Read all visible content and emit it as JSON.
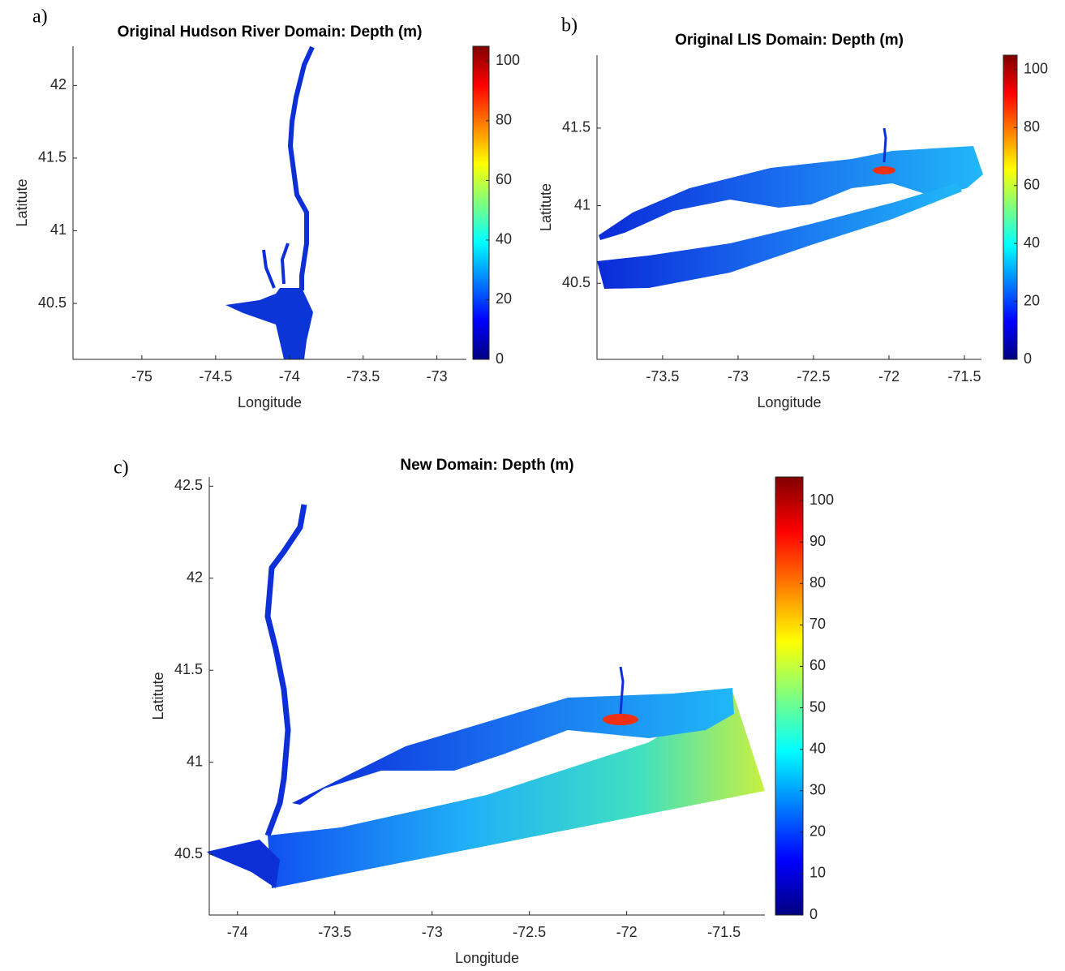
{
  "chart_data": [
    {
      "type": "map",
      "panel_label": "a)",
      "title": "Original Hudson River Domain: Depth (m)",
      "xlabel": "Longitude",
      "ylabel": "Latitute",
      "xlim": [
        -75.467,
        -72.8
      ],
      "xticks": [
        -75,
        -74.5,
        -74,
        -73.5,
        -73
      ],
      "ylim": [
        40.115,
        42.27
      ],
      "yticks": [
        40.5,
        41,
        41.5,
        42
      ],
      "colorbar": {
        "colormap": "jet",
        "clim": [
          0,
          105
        ],
        "ticks": [
          0,
          20,
          40,
          60,
          80,
          100
        ]
      }
    },
    {
      "type": "map",
      "panel_label": "b)",
      "title": "Original LIS Domain: Depth (m)",
      "xlabel": "Longitude",
      "ylabel": "Latitute",
      "xlim": [
        -73.935,
        -71.387
      ],
      "xticks": [
        -73.5,
        -73,
        -72.5,
        -72,
        -71.5
      ],
      "ylim": [
        40.01,
        41.97
      ],
      "yticks": [
        40.5,
        41,
        41.5
      ],
      "colorbar": {
        "colormap": "jet",
        "clim": [
          0,
          105
        ],
        "ticks": [
          0,
          20,
          40,
          60,
          80,
          100
        ]
      }
    },
    {
      "type": "map",
      "panel_label": "c)",
      "title": "New Domain: Depth (m)",
      "xlabel": "Longitude",
      "ylabel": "Latitute",
      "xlim": [
        -74.145,
        -71.29
      ],
      "xticks": [
        -74,
        -73.5,
        -73,
        -72.5,
        -72,
        -71.5
      ],
      "ylim": [
        40.17,
        42.55
      ],
      "yticks": [
        40.5,
        41,
        41.5,
        42,
        42.5
      ],
      "colorbar": {
        "colormap": "jet",
        "clim": [
          0,
          105.7
        ],
        "ticks": [
          0,
          10,
          20,
          30,
          40,
          50,
          60,
          70,
          80,
          90,
          100
        ]
      }
    }
  ]
}
